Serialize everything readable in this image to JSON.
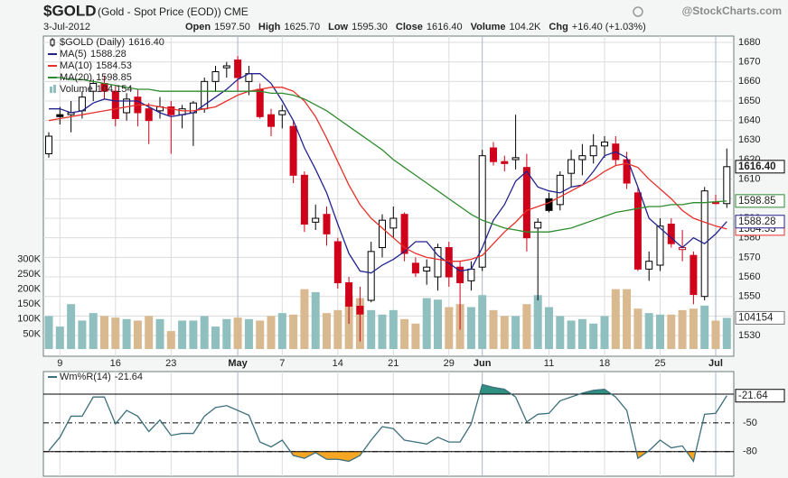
{
  "header": {
    "symbol": "$GOLD",
    "name": "(Gold - Spot Price (EOD)) CME",
    "source": "@StockCharts.com",
    "date": "3-Jul-2012",
    "quote": [
      {
        "label": "Open",
        "value": "1597.50"
      },
      {
        "label": "High",
        "value": "1625.70"
      },
      {
        "label": "Low",
        "value": "1595.30"
      },
      {
        "label": "Close",
        "value": "1616.40"
      },
      {
        "label": "Volume",
        "value": "104.2K"
      },
      {
        "label": "Chg",
        "value": "+16.40 (+1.03%)"
      }
    ]
  },
  "chart_data": [
    {
      "type": "candlestick",
      "name": "$GOLD (Daily)",
      "categories": [
        null,
        "9",
        null,
        null,
        null,
        null,
        "16",
        null,
        null,
        null,
        null,
        "23",
        null,
        null,
        null,
        null,
        null,
        "May",
        null,
        null,
        null,
        "7",
        null,
        null,
        null,
        null,
        "14",
        null,
        null,
        null,
        null,
        "21",
        null,
        null,
        null,
        null,
        "29",
        null,
        null,
        "Jun",
        null,
        null,
        null,
        null,
        null,
        "11",
        null,
        null,
        null,
        null,
        "18",
        null,
        null,
        null,
        null,
        "25",
        null,
        null,
        null,
        null,
        "Jul",
        null
      ],
      "open": [
        1623,
        1643,
        1643,
        1645,
        1655,
        1659,
        1655,
        1644,
        1652,
        1646,
        1645,
        1647,
        1643,
        1644,
        1646,
        1660,
        1667,
        1671,
        1660,
        1656,
        1643,
        1643,
        1637,
        1612,
        1588,
        1592,
        1578,
        1557,
        1545,
        1548,
        1575,
        1585,
        1592,
        1567,
        1563,
        1560,
        1575,
        1565,
        1558,
        1565,
        1626,
        1619,
        1620,
        1616,
        1585,
        1600,
        1597,
        1613,
        1620,
        1622,
        1627,
        1628,
        1620,
        1603,
        1564,
        1566,
        1587,
        1574,
        1571,
        1550,
        1598,
        1597.5
      ],
      "high": [
        1634,
        1647,
        1650,
        1655,
        1661,
        1663,
        1658,
        1654,
        1656,
        1649,
        1652,
        1650,
        1648,
        1650,
        1662,
        1668,
        1670,
        1673,
        1668,
        1659,
        1646,
        1648,
        1640,
        1614,
        1597,
        1596,
        1580,
        1560,
        1555,
        1578,
        1592,
        1596,
        1593,
        1570,
        1569,
        1577,
        1578,
        1568,
        1568,
        1625,
        1629,
        1622,
        1643,
        1623,
        1590,
        1603,
        1614,
        1625,
        1628,
        1633,
        1632,
        1632,
        1624,
        1606,
        1573,
        1590,
        1590,
        1584,
        1573,
        1606,
        1602,
        1625.7
      ],
      "low": [
        1621,
        1638,
        1634,
        1641,
        1650,
        1651,
        1637,
        1640,
        1637,
        1628,
        1641,
        1623,
        1636,
        1627,
        1644,
        1655,
        1662,
        1655,
        1653,
        1641,
        1632,
        1636,
        1608,
        1583,
        1584,
        1576,
        1554,
        1536,
        1527,
        1547,
        1570,
        1580,
        1568,
        1560,
        1556,
        1553,
        1555,
        1533,
        1553,
        1563,
        1617,
        1614,
        1615,
        1573,
        1548,
        1593,
        1594,
        1606,
        1612,
        1618,
        1621,
        1617,
        1605,
        1563,
        1558,
        1563,
        1575,
        1568,
        1546,
        1548,
        1597,
        1595.3
      ],
      "close": [
        1632,
        1642,
        1644,
        1652,
        1659,
        1655,
        1641,
        1651,
        1644,
        1640,
        1647,
        1643,
        1646,
        1649,
        1660,
        1665,
        1668,
        1662,
        1664,
        1642,
        1637,
        1645,
        1612,
        1587,
        1590,
        1582,
        1557,
        1545,
        1541,
        1573,
        1589,
        1590,
        1572,
        1562,
        1565,
        1575,
        1560,
        1557,
        1564,
        1622,
        1619,
        1618,
        1621,
        1580,
        1588,
        1594,
        1612,
        1620,
        1622,
        1627,
        1629,
        1620,
        1608,
        1564,
        1568,
        1586,
        1577,
        1575,
        1551,
        1604,
        1598,
        1616.4
      ],
      "up_color": "#000000",
      "down_color": "#d0021b",
      "series": [
        {
          "name": "MA(5)",
          "color": "#23238e",
          "values": [
            1646,
            1646,
            1644,
            1645,
            1649,
            1651,
            1650,
            1650,
            1650,
            1647,
            1644,
            1642,
            1643,
            1644,
            1648,
            1652,
            1656,
            1661,
            1664,
            1664,
            1659,
            1650,
            1640,
            1626,
            1615,
            1603,
            1587,
            1572,
            1563,
            1562,
            1566,
            1569,
            1573,
            1578,
            1578,
            1571,
            1567,
            1563,
            1564,
            1575,
            1589,
            1597,
            1609,
            1614,
            1606,
            1604,
            1603,
            1606,
            1607,
            1614,
            1622,
            1624,
            1621,
            1606,
            1590,
            1585,
            1580,
            1575,
            1580,
            1577,
            1582,
            1588.28
          ]
        },
        {
          "name": "MA(10)",
          "color": "#e8302a",
          "values": [
            1640,
            1641,
            1642,
            1643,
            1644,
            1645,
            1646,
            1647,
            1648,
            1648,
            1647,
            1646,
            1645,
            1645,
            1646,
            1647,
            1650,
            1653,
            1655,
            1656,
            1657,
            1657,
            1655,
            1650,
            1642,
            1631,
            1619,
            1607,
            1597,
            1590,
            1585,
            1580,
            1575,
            1572,
            1570,
            1569,
            1568,
            1568,
            1569,
            1571,
            1577,
            1583,
            1588,
            1594,
            1596,
            1598,
            1601,
            1604,
            1607,
            1610,
            1614,
            1617,
            1618,
            1616,
            1610,
            1605,
            1600,
            1594,
            1590,
            1588,
            1586,
            1584.53
          ]
        },
        {
          "name": "MA(20)",
          "color": "#2e8b2e",
          "values": [
            1662,
            1662,
            1661,
            1661,
            1660,
            1659,
            1658,
            1657,
            1656,
            1656,
            1655,
            1655,
            1655,
            1655,
            1655,
            1655,
            1655,
            1655,
            1655,
            1655,
            1654,
            1654,
            1653,
            1651,
            1648,
            1645,
            1641,
            1637,
            1633,
            1629,
            1625,
            1620,
            1616,
            1612,
            1608,
            1604,
            1600,
            1596,
            1592,
            1589,
            1587,
            1585,
            1584,
            1583,
            1583,
            1583,
            1584,
            1585,
            1587,
            1589,
            1591,
            1593,
            1594,
            1595,
            1596,
            1596,
            1597,
            1597,
            1598,
            1598,
            1598.5,
            1598.85
          ]
        }
      ],
      "volume": {
        "name": "Volume",
        "last_label": "104,154",
        "up_color": "#8fbfbf",
        "down_color": "#d9b98f",
        "values": [
          110000,
          75000,
          150000,
          95000,
          120000,
          110000,
          105000,
          100000,
          95000,
          110000,
          100000,
          60000,
          95000,
          95000,
          110000,
          75000,
          100000,
          105000,
          100000,
          95000,
          110000,
          120000,
          115000,
          200000,
          190000,
          120000,
          130000,
          180000,
          170000,
          130000,
          115000,
          130000,
          100000,
          85000,
          170000,
          165000,
          140000,
          150000,
          140000,
          180000,
          130000,
          110000,
          110000,
          150000,
          180000,
          140000,
          110000,
          95000,
          100000,
          85000,
          110000,
          200000,
          200000,
          135000,
          120000,
          115000,
          115000,
          130000,
          135000,
          145000,
          95000,
          104154
        ],
        "y2lim": [
          -24096,
          1045181
        ],
        "y2ticks": [
          {
            "value": 50000,
            "label": "50K"
          },
          {
            "value": 100000,
            "label": "100K"
          },
          {
            "value": 150000,
            "label": "150K"
          },
          {
            "value": 200000,
            "label": "200K"
          },
          {
            "value": 250000,
            "label": "250K"
          },
          {
            "value": 300000,
            "label": "300K"
          }
        ]
      },
      "ylim": [
        1519.4,
        1683.23
      ],
      "yticks": [
        1530,
        1540,
        1550,
        1560,
        1570,
        1580,
        1590,
        1600,
        1610,
        1620,
        1630,
        1640,
        1650,
        1660,
        1670,
        1680
      ],
      "grid": true
    },
    {
      "type": "line",
      "name": "Wm%R(14)",
      "color": "#3d6f7c",
      "values": [
        -79,
        -65,
        -43,
        -43,
        -23,
        -23,
        -51,
        -37,
        -43,
        -59,
        -47,
        -63,
        -61,
        -61,
        -43,
        -34,
        -32,
        -37,
        -42,
        -70,
        -75,
        -68,
        -84,
        -87,
        -81,
        -88,
        -88,
        -90,
        -84,
        -68,
        -54,
        -56,
        -68,
        -70,
        -72,
        -65,
        -70,
        -70,
        -51,
        -10,
        -13,
        -15,
        -23,
        -49,
        -41,
        -40,
        -27,
        -23,
        -19,
        -16,
        -15,
        -23,
        -37,
        -87,
        -79,
        -68,
        -76,
        -74,
        -90,
        -41,
        -40,
        -21.64
      ],
      "ylim": [
        -105.6,
        3.5
      ],
      "yticks": [
        -50,
        -80
      ],
      "overbought": -20,
      "oversold": -80,
      "overbought_color": "#2f8f80",
      "oversold_color": "#f5a623"
    }
  ]
}
